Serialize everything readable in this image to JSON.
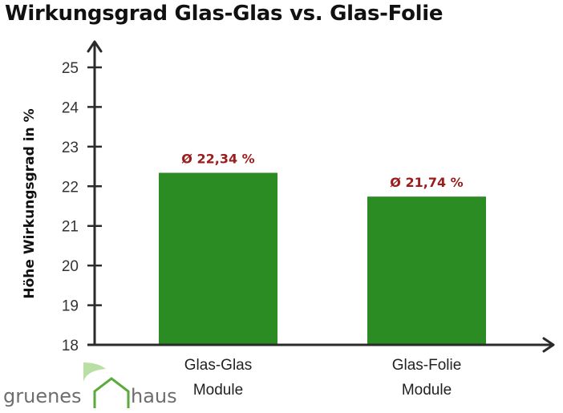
{
  "title": "Wirkungsgrad Glas-Glas vs. Glas-Folie",
  "logo": {
    "word1": "gruenes",
    "word2": "haus"
  },
  "colors": {
    "bar": "#2a8c22",
    "label": "#9a1c1c",
    "axis": "#2b2b2b",
    "logo_text": "#6e6e6e",
    "logo_green": "#5aaa3c",
    "logo_light": "#b9dfa4"
  },
  "chart_data": {
    "type": "bar",
    "title": "Wirkungsgrad Glas-Glas vs. Glas-Folie",
    "ylabel": "Höhe Wirkungsgrad in %",
    "xlabel": "",
    "ylim": [
      18,
      25
    ],
    "yticks": [
      "18",
      "19",
      "20",
      "21",
      "22",
      "23",
      "24",
      "25"
    ],
    "categories": [
      [
        "Glas-Glas",
        "Module"
      ],
      [
        "Glas-Folie",
        "Module"
      ]
    ],
    "values": [
      22.34,
      21.74
    ],
    "data_labels": [
      "Ø 22,34 %",
      "Ø 21,74 %"
    ],
    "grid": false,
    "legend": "none"
  }
}
